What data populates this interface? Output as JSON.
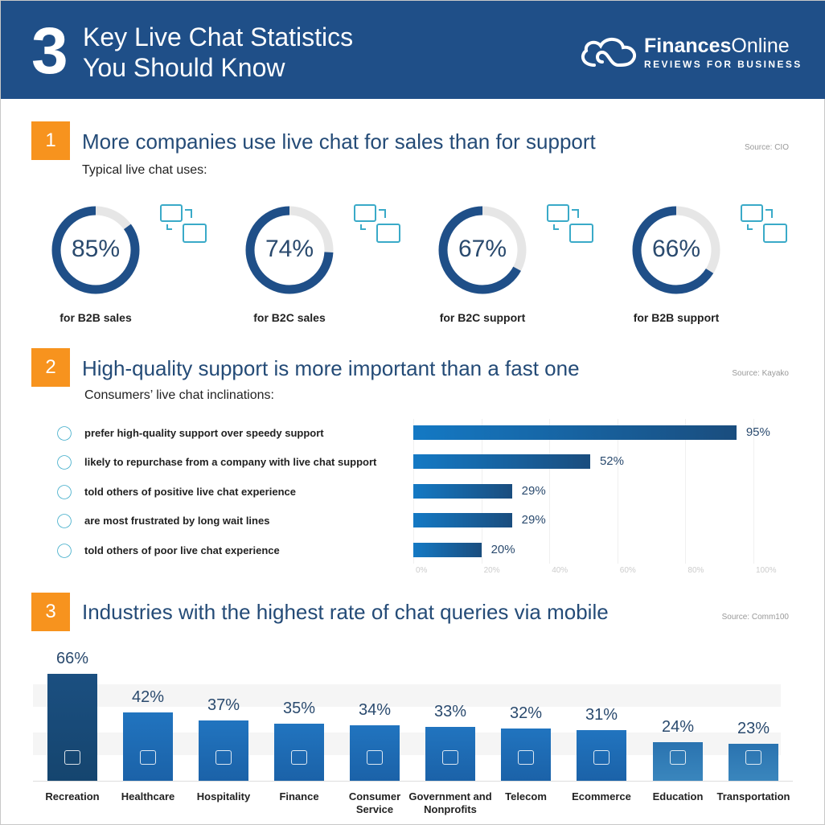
{
  "header": {
    "number": "3",
    "title_line1": "Key Live Chat Statistics",
    "title_line2": "You Should Know",
    "logo_bold": "Finances",
    "logo_light": "Online",
    "logo_tagline": "REVIEWS FOR BUSINESS"
  },
  "sections": [
    {
      "number": "1",
      "title": "More companies use live chat for sales than for support",
      "source": "Source: CIO",
      "subtitle": "Typical live chat uses:"
    },
    {
      "number": "2",
      "title": "High-quality support is more important than a fast one",
      "source": "Source: Kayako",
      "subtitle": "Consumers’ live chat inclinations:"
    },
    {
      "number": "3",
      "title": "Industries with the highest rate of chat queries via mobile",
      "source": "Source: Comm100"
    }
  ],
  "colors": {
    "header": "#1f4f88",
    "accent": "#f7931e",
    "bar_dark": "#1a4d7e",
    "bar": "#1f6fb8",
    "donut": "#1f4f88",
    "donut_track": "#e6e6e6"
  },
  "chart_data": [
    {
      "type": "pie",
      "style": "donut",
      "values": [
        85,
        74,
        67,
        66
      ],
      "labels": [
        "85%",
        "74%",
        "67%",
        "66%"
      ],
      "categories": [
        "for B2B sales",
        "for B2C sales",
        "for B2C support",
        "for B2B support"
      ],
      "icons": [
        "briefcase-exchange-icon",
        "briefcase-person-icon",
        "chat-people-icon",
        "businessman-icon"
      ]
    },
    {
      "type": "bar",
      "orientation": "horizontal",
      "categories": [
        "prefer high-quality support over speedy support",
        "likely to repurchase from a company with live chat support",
        "told others of positive live chat experience",
        "are most frustrated by long wait lines",
        "told others of poor live chat experience"
      ],
      "values": [
        95,
        52,
        29,
        29,
        20
      ],
      "labels": [
        "95%",
        "52%",
        "29%",
        "29%",
        "20%"
      ],
      "icons": [
        "quality-badge-icon",
        "shopping-bag-icon",
        "heart-chat-icon",
        "clock-icon",
        "thumbs-down-icon"
      ],
      "xlim": [
        0,
        100
      ],
      "ticks": [
        "0%",
        "20%",
        "40%",
        "60%",
        "80%",
        "100%"
      ],
      "grid": true
    },
    {
      "type": "bar",
      "orientation": "vertical",
      "categories": [
        "Recreation",
        "Healthcare",
        "Hospitality",
        "Finance",
        "Consumer Service",
        "Government and Nonprofits",
        "Telecom",
        "Ecommerce",
        "Education",
        "Transportation"
      ],
      "values": [
        66,
        42,
        37,
        35,
        34,
        33,
        32,
        31,
        24,
        23
      ],
      "labels": [
        "66%",
        "42%",
        "37%",
        "35%",
        "34%",
        "33%",
        "32%",
        "31%",
        "24%",
        "23%"
      ],
      "icons": [
        "carousel-icon",
        "heartbeat-icon",
        "first-aid-kit-icon",
        "money-bag-icon",
        "person-icon",
        "government-building-icon",
        "phone-icon",
        "cart-icon",
        "book-icon",
        "truck-icon"
      ]
    }
  ]
}
